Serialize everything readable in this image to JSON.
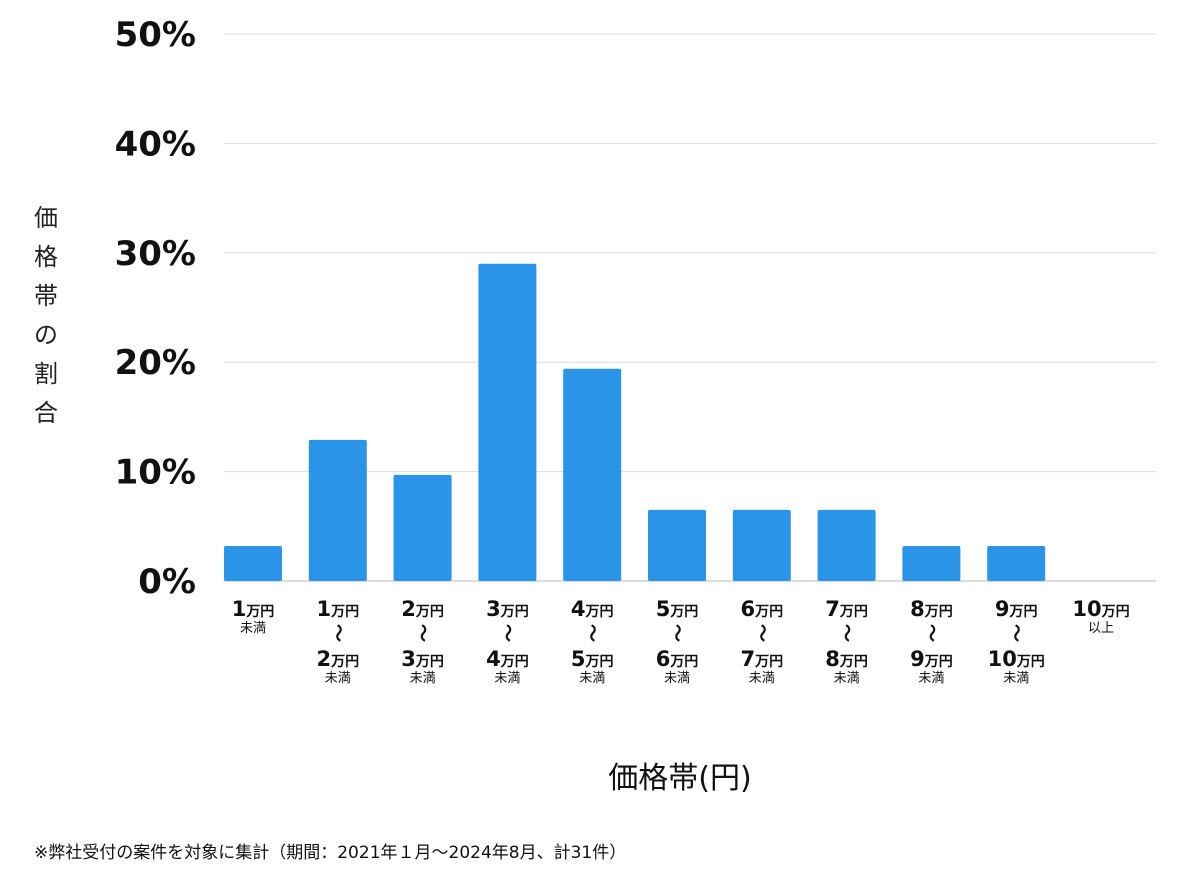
{
  "chart_data": {
    "type": "bar",
    "ylabel": "価格帯の割合",
    "xlabel": "価格帯(円)",
    "ylim": [
      0,
      50
    ],
    "yticks": [
      "0%",
      "10%",
      "20%",
      "30%",
      "40%",
      "50%"
    ],
    "grid": true,
    "bar_color": "#2a94e8",
    "categories": [
      {
        "lines": [
          [
            "1",
            "万円"
          ],
          [
            "未満"
          ]
        ]
      },
      {
        "lines": [
          [
            "1",
            "万円"
          ],
          [
            "〜"
          ],
          [
            "2",
            "万円"
          ],
          [
            "未満"
          ]
        ]
      },
      {
        "lines": [
          [
            "2",
            "万円"
          ],
          [
            "〜"
          ],
          [
            "3",
            "万円"
          ],
          [
            "未満"
          ]
        ]
      },
      {
        "lines": [
          [
            "3",
            "万円"
          ],
          [
            "〜"
          ],
          [
            "4",
            "万円"
          ],
          [
            "未満"
          ]
        ]
      },
      {
        "lines": [
          [
            "4",
            "万円"
          ],
          [
            "〜"
          ],
          [
            "5",
            "万円"
          ],
          [
            "未満"
          ]
        ]
      },
      {
        "lines": [
          [
            "5",
            "万円"
          ],
          [
            "〜"
          ],
          [
            "6",
            "万円"
          ],
          [
            "未満"
          ]
        ]
      },
      {
        "lines": [
          [
            "6",
            "万円"
          ],
          [
            "〜"
          ],
          [
            "7",
            "万円"
          ],
          [
            "未満"
          ]
        ]
      },
      {
        "lines": [
          [
            "7",
            "万円"
          ],
          [
            "〜"
          ],
          [
            "8",
            "万円"
          ],
          [
            "未満"
          ]
        ]
      },
      {
        "lines": [
          [
            "8",
            "万円"
          ],
          [
            "〜"
          ],
          [
            "9",
            "万円"
          ],
          [
            "未満"
          ]
        ]
      },
      {
        "lines": [
          [
            "9",
            "万円"
          ],
          [
            "〜"
          ],
          [
            "10",
            "万円"
          ],
          [
            "未満"
          ]
        ]
      },
      {
        "lines": [
          [
            "10",
            "万円"
          ],
          [
            "以上"
          ]
        ]
      }
    ],
    "values": [
      3.2,
      12.9,
      9.7,
      29.0,
      19.4,
      6.5,
      6.5,
      6.5,
      3.2,
      3.2,
      0
    ]
  },
  "footnote": "※弊社受付の案件を対象に集計（期間：2021年１月〜2024年8月、計31件）"
}
